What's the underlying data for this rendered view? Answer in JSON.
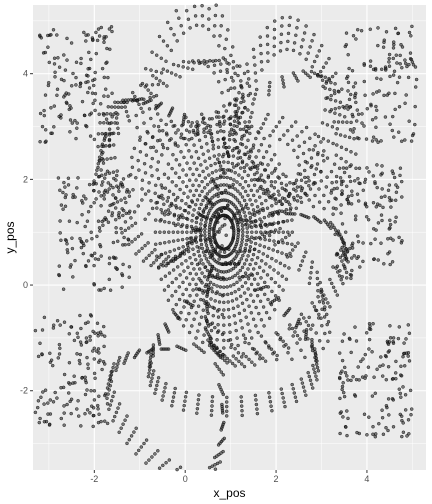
{
  "chart_data": {
    "type": "scatter",
    "title": "",
    "xlabel": "x_pos",
    "ylabel": "y_pos",
    "xlim": [
      -3.35,
      5.3
    ],
    "ylim": [
      -3.5,
      5.3
    ],
    "x_ticks": [
      -2,
      0,
      2,
      4
    ],
    "y_ticks": [
      -2,
      0,
      2,
      4
    ],
    "x_tick_labels": [
      "-2",
      "0",
      "2",
      "4"
    ],
    "y_tick_labels": [
      "-2",
      "0",
      "2",
      "4"
    ],
    "grid": true,
    "legend": "none",
    "colors": {
      "panel": "#ebebeb",
      "grid_major": "#ffffff",
      "point_fill": "#2b2b2b",
      "point_stroke": "#000000",
      "tick": "#333333"
    },
    "description_of_marks": "dense generative-art scatter of open circles forming interwoven ribbon loops; plotted from parametric point sets",
    "series": [
      {
        "values": "generated",
        "approx_point_count": 6000
      }
    ]
  }
}
